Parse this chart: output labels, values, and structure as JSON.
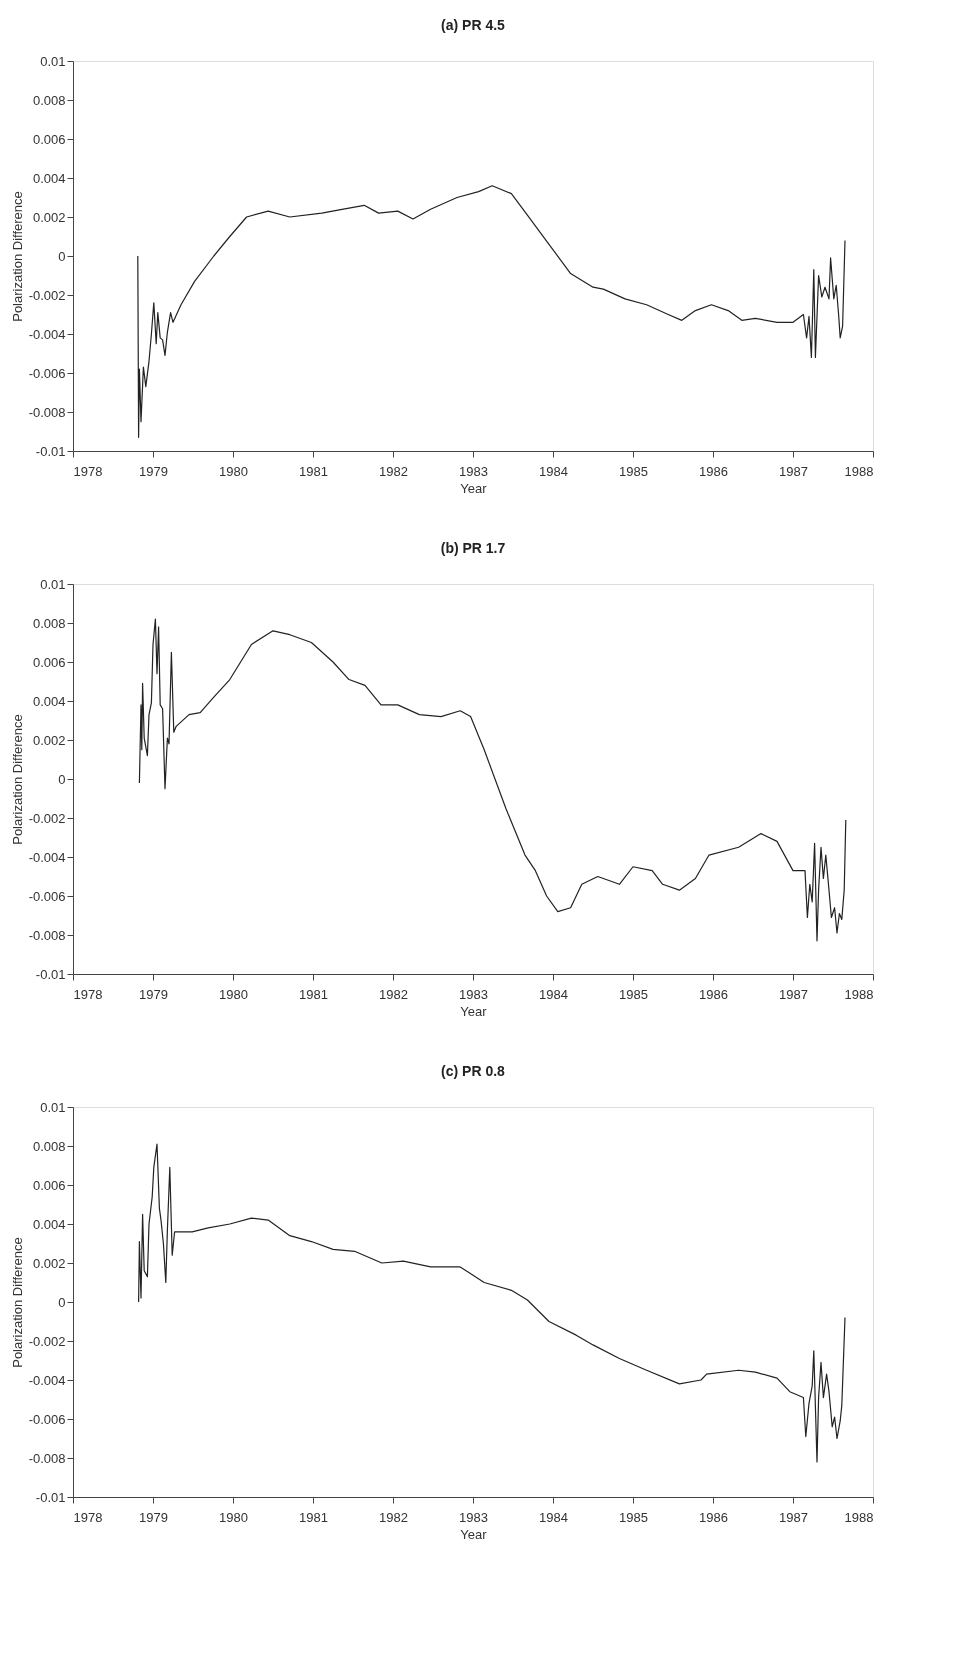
{
  "chart_data": [
    {
      "type": "line",
      "title": "(a)  PR 4.5",
      "xlabel": "Year",
      "ylabel": "Polarization Difference",
      "xlim": [
        1978,
        1988
      ],
      "xticks": [
        1978,
        1979,
        1980,
        1981,
        1982,
        1983,
        1984,
        1985,
        1986,
        1987,
        1988
      ],
      "ylim": [
        -0.01,
        0.01
      ],
      "yticks": [
        -0.01,
        -0.008,
        -0.006,
        -0.004,
        -0.002,
        0,
        0.002,
        0.004,
        0.006,
        0.008,
        0.01
      ],
      "grid": false,
      "marker": "none",
      "line_style": "solid",
      "series": [
        {
          "color": "#222222",
          "x": [
            1978.81,
            1978.82,
            1978.83,
            1978.85,
            1978.88,
            1978.91,
            1978.95,
            1978.98,
            1979.01,
            1979.04,
            1979.06,
            1979.09,
            1979.12,
            1979.15,
            1979.18,
            1979.22,
            1979.25,
            1979.35,
            1979.52,
            1979.76,
            1979.96,
            1980.17,
            1980.44,
            1980.71,
            1981.11,
            1981.38,
            1981.64,
            1981.82,
            1982.06,
            1982.25,
            1982.47,
            1982.8,
            1983.07,
            1983.24,
            1983.48,
            1983.68,
            1983.95,
            1984.22,
            1984.5,
            1984.63,
            1984.9,
            1985.17,
            1985.44,
            1985.61,
            1985.78,
            1985.98,
            1986.19,
            1986.36,
            1986.53,
            1986.8,
            1987.0,
            1987.13,
            1987.17,
            1987.2,
            1987.23,
            1987.26,
            1987.28,
            1987.32,
            1987.36,
            1987.4,
            1987.45,
            1987.47,
            1987.51,
            1987.54,
            1987.57,
            1987.59,
            1987.62,
            1987.65
          ],
          "values": [
            0.0,
            -0.0093,
            -0.0058,
            -0.0085,
            -0.0057,
            -0.0067,
            -0.0054,
            -0.004,
            -0.0024,
            -0.0045,
            -0.0029,
            -0.0042,
            -0.0043,
            -0.0051,
            -0.0039,
            -0.0029,
            -0.0034,
            -0.0025,
            -0.0013,
            0.0,
            0.001,
            0.002,
            0.0023,
            0.002,
            0.0022,
            0.0024,
            0.0026,
            0.0022,
            0.0023,
            0.0019,
            0.0024,
            0.003,
            0.0033,
            0.0036,
            0.0032,
            0.0021,
            0.0006,
            -0.0009,
            -0.0016,
            -0.0017,
            -0.0022,
            -0.0025,
            -0.003,
            -0.0033,
            -0.0028,
            -0.0025,
            -0.0028,
            -0.0033,
            -0.0032,
            -0.0034,
            -0.0034,
            -0.003,
            -0.0042,
            -0.0031,
            -0.0052,
            -0.0007,
            -0.0052,
            -0.001,
            -0.0021,
            -0.0016,
            -0.0022,
            -0.0001,
            -0.0022,
            -0.0015,
            -0.003,
            -0.0042,
            -0.0036,
            0.0008
          ]
        }
      ]
    },
    {
      "type": "line",
      "title": "(b)  PR 1.7",
      "xlabel": "Year",
      "ylabel": "Polarization Difference",
      "xlim": [
        1978,
        1988
      ],
      "xticks": [
        1978,
        1979,
        1980,
        1981,
        1982,
        1983,
        1984,
        1985,
        1986,
        1987,
        1988
      ],
      "ylim": [
        -0.01,
        0.01
      ],
      "yticks": [
        -0.01,
        -0.008,
        -0.006,
        -0.004,
        -0.002,
        0,
        0.002,
        0.004,
        0.006,
        0.008,
        0.01
      ],
      "grid": false,
      "marker": "none",
      "line_style": "solid",
      "series": [
        {
          "color": "#222222",
          "x": [
            1978.83,
            1978.85,
            1978.86,
            1978.87,
            1978.89,
            1978.93,
            1978.95,
            1978.98,
            1979.0,
            1979.03,
            1979.05,
            1979.07,
            1979.09,
            1979.12,
            1979.15,
            1979.18,
            1979.2,
            1979.23,
            1979.26,
            1979.29,
            1979.45,
            1979.59,
            1979.76,
            1979.96,
            1980.23,
            1980.5,
            1980.71,
            1980.98,
            1981.25,
            1981.45,
            1981.65,
            1981.85,
            1982.06,
            1982.33,
            1982.6,
            1982.84,
            1982.97,
            1983.14,
            1983.41,
            1983.65,
            1983.78,
            1983.92,
            1984.06,
            1984.22,
            1984.36,
            1984.56,
            1984.83,
            1985.0,
            1985.24,
            1985.37,
            1985.58,
            1985.78,
            1985.95,
            1986.32,
            1986.6,
            1986.8,
            1987.0,
            1987.15,
            1987.18,
            1987.21,
            1987.24,
            1987.27,
            1987.3,
            1987.32,
            1987.35,
            1987.38,
            1987.41,
            1987.45,
            1987.48,
            1987.52,
            1987.55,
            1987.58,
            1987.61,
            1987.64,
            1987.66
          ],
          "values": [
            -0.0002,
            0.0038,
            0.0015,
            0.0049,
            0.0021,
            0.0012,
            0.0033,
            0.0039,
            0.0069,
            0.0082,
            0.0054,
            0.0078,
            0.0038,
            0.0036,
            -0.0005,
            0.0021,
            0.0018,
            0.0065,
            0.0024,
            0.0027,
            0.0033,
            0.0034,
            0.0042,
            0.0051,
            0.0069,
            0.0076,
            0.0074,
            0.007,
            0.006,
            0.0051,
            0.0048,
            0.0038,
            0.0038,
            0.0033,
            0.0032,
            0.0035,
            0.0032,
            0.0015,
            -0.0015,
            -0.0039,
            -0.0047,
            -0.006,
            -0.0068,
            -0.0066,
            -0.0054,
            -0.005,
            -0.0054,
            -0.0045,
            -0.0047,
            -0.0054,
            -0.0057,
            -0.0051,
            -0.0039,
            -0.0035,
            -0.0028,
            -0.0032,
            -0.0047,
            -0.0047,
            -0.0071,
            -0.0054,
            -0.0063,
            -0.0033,
            -0.0083,
            -0.0057,
            -0.0035,
            -0.0051,
            -0.0039,
            -0.0057,
            -0.0071,
            -0.0066,
            -0.0079,
            -0.0069,
            -0.0072,
            -0.0057,
            -0.0021
          ]
        }
      ]
    },
    {
      "type": "line",
      "title": "(c)  PR 0.8",
      "xlabel": "Year",
      "ylabel": "Polarization Difference",
      "xlim": [
        1978,
        1988
      ],
      "xticks": [
        1978,
        1979,
        1980,
        1981,
        1982,
        1983,
        1984,
        1985,
        1986,
        1987,
        1988
      ],
      "ylim": [
        -0.01,
        0.01
      ],
      "yticks": [
        -0.01,
        -0.008,
        -0.006,
        -0.004,
        -0.002,
        0,
        0.002,
        0.004,
        0.006,
        0.008,
        0.01
      ],
      "grid": false,
      "marker": "none",
      "line_style": "solid",
      "series": [
        {
          "color": "#222222",
          "x": [
            1978.82,
            1978.83,
            1978.85,
            1978.87,
            1978.89,
            1978.93,
            1978.95,
            1978.99,
            1979.01,
            1979.05,
            1979.08,
            1979.1,
            1979.13,
            1979.16,
            1979.18,
            1979.21,
            1979.24,
            1979.27,
            1979.49,
            1979.69,
            1979.96,
            1980.23,
            1980.44,
            1980.71,
            1980.98,
            1981.25,
            1981.52,
            1981.86,
            1982.13,
            1982.47,
            1982.84,
            1983.14,
            1983.48,
            1983.68,
            1983.95,
            1984.29,
            1984.5,
            1984.83,
            1985.17,
            1985.58,
            1985.85,
            1985.92,
            1986.32,
            1986.53,
            1986.8,
            1986.96,
            1987.13,
            1987.16,
            1987.2,
            1987.24,
            1987.26,
            1987.3,
            1987.32,
            1987.35,
            1987.38,
            1987.42,
            1987.45,
            1987.49,
            1987.52,
            1987.55,
            1987.59,
            1987.61,
            1987.65
          ],
          "values": [
            0.0,
            0.0031,
            0.0002,
            0.0045,
            0.0016,
            0.0013,
            0.004,
            0.0054,
            0.0069,
            0.0081,
            0.0048,
            0.0042,
            0.003,
            0.001,
            0.0037,
            0.0069,
            0.0024,
            0.0036,
            0.0036,
            0.0038,
            0.004,
            0.0043,
            0.0042,
            0.0034,
            0.0031,
            0.0027,
            0.0026,
            0.002,
            0.0021,
            0.0018,
            0.0018,
            0.001,
            0.0006,
            0.0001,
            -0.001,
            -0.0017,
            -0.0022,
            -0.0029,
            -0.0035,
            -0.0042,
            -0.004,
            -0.0037,
            -0.0035,
            -0.0036,
            -0.0039,
            -0.0046,
            -0.0049,
            -0.0069,
            -0.0052,
            -0.0043,
            -0.0025,
            -0.0082,
            -0.0049,
            -0.0031,
            -0.0049,
            -0.0037,
            -0.0046,
            -0.0064,
            -0.0059,
            -0.007,
            -0.0061,
            -0.0053,
            -0.0008
          ]
        }
      ]
    }
  ]
}
